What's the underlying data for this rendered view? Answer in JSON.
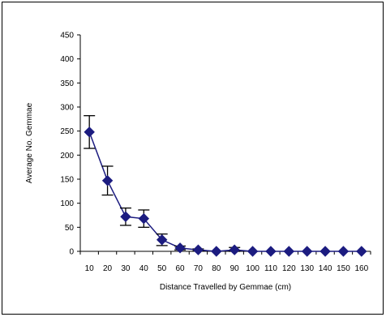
{
  "chart_data": {
    "type": "line",
    "title": "",
    "xlabel": "Distance Travelled by Gemmae (cm)",
    "ylabel": "Average No. Gemmae",
    "ylim": [
      0,
      450
    ],
    "yticks": [
      0,
      50,
      100,
      150,
      200,
      250,
      300,
      350,
      400,
      450
    ],
    "categories": [
      "10",
      "20",
      "30",
      "40",
      "50",
      "60",
      "70",
      "80",
      "90",
      "100",
      "110",
      "120",
      "130",
      "140",
      "150",
      "160"
    ],
    "series": [
      {
        "values": [
          248,
          147,
          72,
          68,
          24,
          7,
          3,
          0,
          3,
          0,
          0,
          0,
          0,
          0,
          0,
          0
        ],
        "error": [
          34,
          30,
          18,
          18,
          12,
          4,
          2,
          0,
          5,
          0,
          0,
          0,
          0,
          0,
          0,
          0
        ],
        "color": "#1c1c80",
        "marker": "diamond"
      }
    ],
    "grid": false,
    "legend": "none"
  }
}
